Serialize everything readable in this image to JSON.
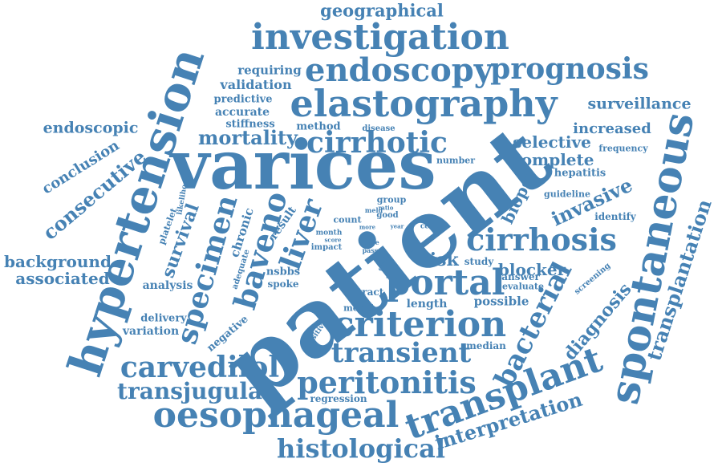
{
  "colors": {
    "word": "#4682b4",
    "background": "#ffffff"
  },
  "words": {
    "patient": "patient",
    "varices": "varices",
    "elastography": "elastography",
    "spontaneous": "spontaneous",
    "hypertension": "hypertension",
    "investigation": "investigation",
    "transplant": "transplant",
    "oesophageal": "oesophageal",
    "criterion": "criterion",
    "endoscopy": "endoscopy",
    "prognosis": "prognosis",
    "cirrhosis": "cirrhosis",
    "portal": "portal",
    "cirrhotic": "cirrhotic",
    "peritonitis": "peritonitis",
    "transient": "transient",
    "carvedilol": "carvedilol",
    "histological": "histological",
    "transjugular": "transjugular",
    "baveno": "baveno",
    "specimen": "specimen",
    "liver": "liver",
    "bacterial": "bacterial",
    "transplantation": "transplantation",
    "consecutive": "consecutive",
    "interpretation": "interpretation",
    "mortality": "mortality",
    "geographical": "geographical",
    "surveillance": "surveillance",
    "invasive": "invasive",
    "diagnosis": "diagnosis",
    "background": "background",
    "associated": "associated",
    "endoscopic": "endoscopic",
    "conclusion": "conclusion",
    "selective": "selective",
    "complete": "complete",
    "increased": "increased",
    "risk": "risk",
    "blocker": "blocker",
    "survival": "survival",
    "biopsy": "biopsy",
    "requiring": "requiring",
    "validation": "validation",
    "predictive": "predictive",
    "accurate": "accurate",
    "stiffness": "stiffness",
    "method": "method",
    "disease": "disease",
    "frequency": "frequency",
    "hepatitis": "hepatitis",
    "guideline": "guideline",
    "identify": "identify",
    "number": "number",
    "group": "group",
    "meld": "meld",
    "ratio": "ratio",
    "good": "good",
    "count": "count",
    "more": "more",
    "year": "year",
    "month": "month",
    "score": "score",
    "center": "center",
    "impact": "impact",
    "care": "care",
    "passe": "passe",
    "grade": "grade",
    "value": "value",
    "result": "result",
    "chronic": "chronic",
    "platelet": "platelet",
    "likelihood": "likelihood",
    "adequate": "adequate",
    "nsbbs": "nsbbs",
    "spoke": "spoke",
    "analysis": "analysis",
    "delivery": "delivery",
    "variation": "variation",
    "negative": "negative",
    "positive": "positive",
    "tract": "tract",
    "model": "model",
    "length": "length",
    "possible": "possible",
    "study": "study",
    "answer": "answer",
    "evaluate": "evaluate",
    "screening": "screening",
    "median": "median",
    "regression": "regression"
  }
}
